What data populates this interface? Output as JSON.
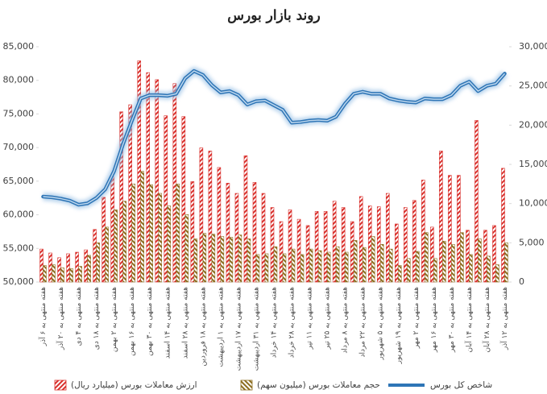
{
  "chart_data": {
    "type": "bar",
    "title": "روند بازار بورس",
    "categories": [
      "هفته منتهی به ۶ آذر",
      null,
      "هفته منتهی به ۲۰ آذر",
      null,
      "هفته منتهی به ۴ دی",
      null,
      "هفته منتهی به ۱۸ دی",
      null,
      "هفته منتهی به ۲ بهمن",
      null,
      "هفته منتهی به ۱۶ بهمن",
      null,
      "هفته منتهی به ۳۰ بهمن",
      null,
      "هفته منتهی به ۱۴ اسفند",
      null,
      "هفته منتهی به ۲۸ اسفند",
      null,
      "هفته منتهی به ۱۸ فروردین",
      null,
      "هفته منتهی به ۱ اردیبهشت",
      null,
      "هفته منتهی به ۱۷ اردیبهشت",
      null,
      "هفته منتهی به ۳۱ اردیبهشت",
      null,
      "هفته منتهی به ۱۴ خرداد",
      null,
      "هفته منتهی به ۲۸ خرداد",
      null,
      "هفته منتهی به ۱۱ تیر",
      null,
      "هفته منتهی به ۲۵ تیر",
      null,
      "هفته منتهی به ۸ مرداد",
      null,
      "هفته منتهی به ۲۲ مرداد",
      null,
      "هفته منتهی به ۵ شهریور",
      null,
      "هفته منتهی به ۱۹ شهریور",
      null,
      "هفته منتهی به ۲ مهر",
      null,
      "هفته منتهی به ۱۶ مهر",
      null,
      "هفته منتهی به ۳۰ مهر",
      null,
      "هفته منتهی به ۱۴ آبان",
      null,
      "هفته منتهی به ۲۸ آبان",
      null,
      "هفته منتهی به ۱۲ آذر"
    ],
    "series": [
      {
        "name": "ارزش معاملات بورس (میلیارد ریال)",
        "type": "bar",
        "axis": "y2",
        "color": "#d9302c",
        "values": [
          4200,
          3700,
          3100,
          3600,
          3800,
          4100,
          6700,
          10800,
          13400,
          21700,
          22600,
          28200,
          26700,
          25800,
          21200,
          25300,
          21100,
          12800,
          17100,
          16700,
          14600,
          12600,
          11300,
          16100,
          12700,
          11300,
          9500,
          7700,
          9200,
          8000,
          7200,
          9000,
          9000,
          10300,
          9500,
          7700,
          10900,
          9700,
          9600,
          11300,
          7400,
          9500,
          10400,
          13000,
          7000,
          16700,
          13600,
          13600,
          6600,
          20600,
          6600,
          7200,
          14500
        ]
      },
      {
        "name": "حجم معاملات بورس (میلیون سهم)",
        "type": "bar",
        "axis": "y2",
        "color": "#8c6d1f",
        "values": [
          2100,
          2200,
          1800,
          1700,
          2000,
          3400,
          5000,
          7000,
          9200,
          10300,
          12500,
          14100,
          12400,
          11300,
          9700,
          12500,
          8600,
          5500,
          6200,
          6100,
          5800,
          5700,
          6000,
          5500,
          3500,
          3600,
          4500,
          3600,
          4200,
          3500,
          4200,
          4000,
          3800,
          4500,
          3800,
          5300,
          4400,
          5800,
          4800,
          4200,
          2100,
          3000,
          3900,
          6300,
          3000,
          5200,
          4800,
          6300,
          3500,
          5500,
          3300,
          2200,
          5000
        ]
      },
      {
        "name": "شاخص کل بورس",
        "type": "line",
        "color": "#2e75b6",
        "values": [
          62700,
          62600,
          62400,
          62100,
          61500,
          61700,
          62500,
          63800,
          66500,
          70500,
          74000,
          77300,
          77800,
          77800,
          77700,
          78000,
          80300,
          81400,
          80800,
          79300,
          78200,
          78400,
          77800,
          76400,
          76900,
          77000,
          76300,
          75600,
          73700,
          73800,
          74000,
          74100,
          74000,
          74600,
          76500,
          78000,
          78300,
          78000,
          78000,
          77300,
          77000,
          76800,
          76700,
          77300,
          77200,
          77200,
          77800,
          79200,
          79800,
          78400,
          79200,
          79500,
          81000
        ]
      }
    ],
    "ylim": [
      50000,
      85000
    ],
    "yticks": [
      {
        "value": 50000,
        "label": "50,000"
      },
      {
        "value": 55000,
        "label": "55,000"
      },
      {
        "value": 60000,
        "label": "60,000"
      },
      {
        "value": 65000,
        "label": "65,000"
      },
      {
        "value": 70000,
        "label": "70,000"
      },
      {
        "value": 75000,
        "label": "75,000"
      },
      {
        "value": 80000,
        "label": "80,000"
      },
      {
        "value": 85000,
        "label": "85,000"
      }
    ],
    "y2lim": [
      0,
      30000
    ],
    "y2ticks": [
      0,
      {
        "value": 5000,
        "label": "5,000"
      },
      {
        "value": 10000,
        "label": "10,000"
      },
      {
        "value": 15000,
        "label": "15,000"
      },
      {
        "value": 20000,
        "label": "20,000"
      },
      {
        "value": 25000,
        "label": "25,000"
      },
      {
        "value": 30000,
        "label": "30,000"
      }
    ],
    "grid": false,
    "legend": "bottom"
  }
}
